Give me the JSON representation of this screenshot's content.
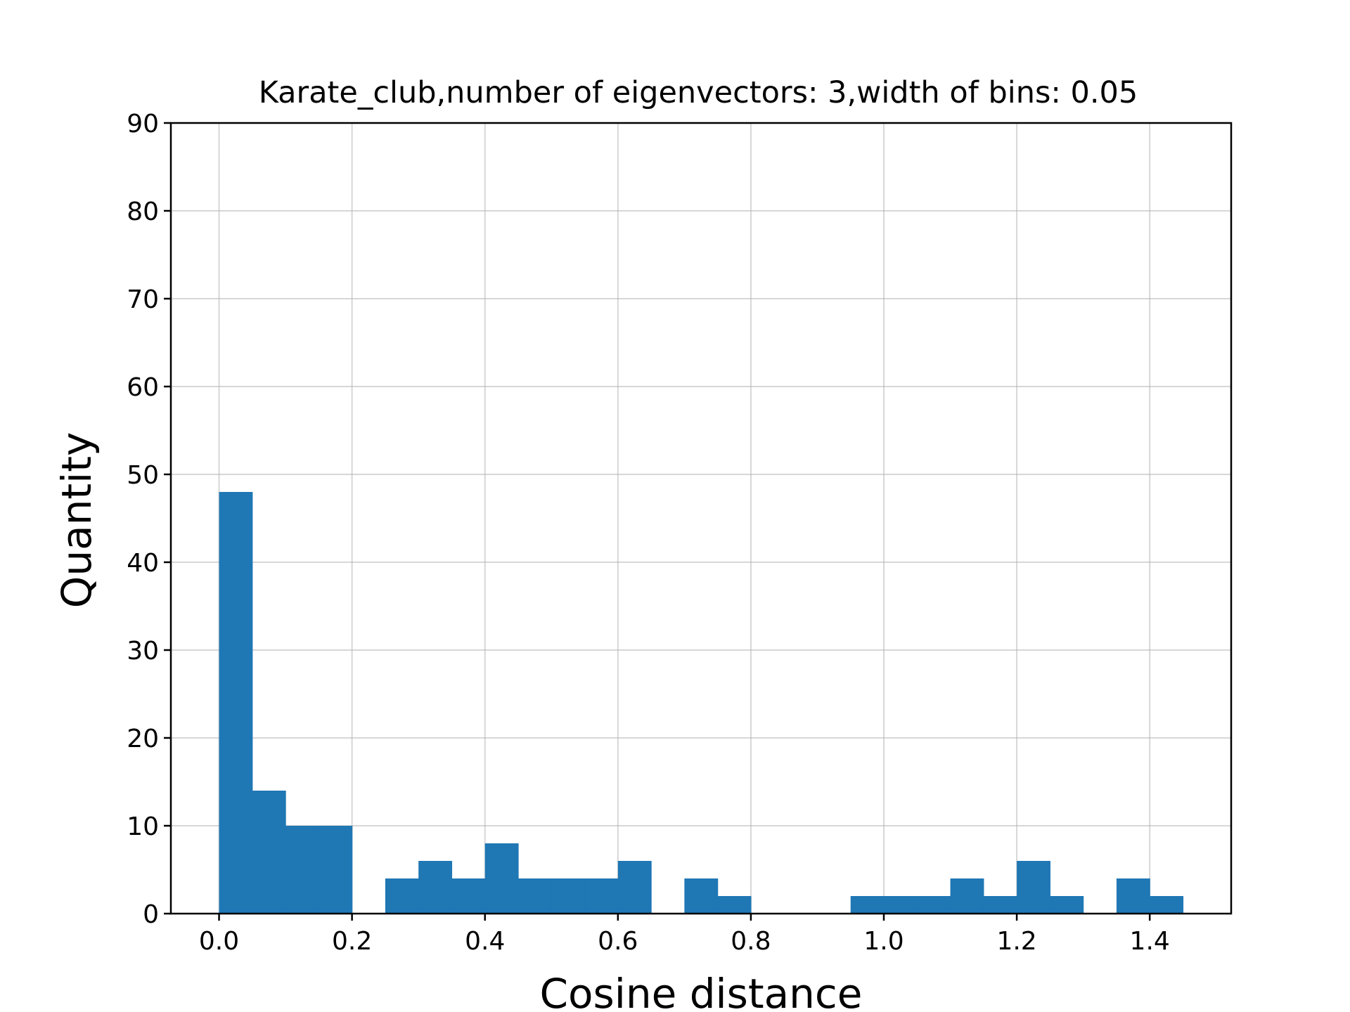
{
  "chart_data": {
    "type": "bar",
    "title": "Karate_club,number of eigenvectors: 3,width of bins: 0.05",
    "xlabel": "Cosine distance",
    "ylabel": "Quantity",
    "xlim": [
      -0.0725,
      1.5225
    ],
    "ylim": [
      0,
      90
    ],
    "bin_width": 0.05,
    "bar_color": "#1f77b4",
    "grid": true,
    "x_ticks": [
      {
        "value": 0.0,
        "label": "0.0"
      },
      {
        "value": 0.2,
        "label": "0.2"
      },
      {
        "value": 0.4,
        "label": "0.4"
      },
      {
        "value": 0.6,
        "label": "0.6"
      },
      {
        "value": 0.8,
        "label": "0.8"
      },
      {
        "value": 1.0,
        "label": "1.0"
      },
      {
        "value": 1.2,
        "label": "1.2"
      },
      {
        "value": 1.4,
        "label": "1.4"
      }
    ],
    "y_ticks": [
      {
        "value": 0,
        "label": "0"
      },
      {
        "value": 10,
        "label": "10"
      },
      {
        "value": 20,
        "label": "20"
      },
      {
        "value": 30,
        "label": "30"
      },
      {
        "value": 40,
        "label": "40"
      },
      {
        "value": 50,
        "label": "50"
      },
      {
        "value": 60,
        "label": "60"
      },
      {
        "value": 70,
        "label": "70"
      },
      {
        "value": 80,
        "label": "80"
      },
      {
        "value": 90,
        "label": "90"
      }
    ],
    "bins": [
      {
        "start": 0.0,
        "count": 48
      },
      {
        "start": 0.05,
        "count": 14
      },
      {
        "start": 0.1,
        "count": 10
      },
      {
        "start": 0.15,
        "count": 10
      },
      {
        "start": 0.2,
        "count": 0
      },
      {
        "start": 0.25,
        "count": 4
      },
      {
        "start": 0.3,
        "count": 6
      },
      {
        "start": 0.35,
        "count": 4
      },
      {
        "start": 0.4,
        "count": 8
      },
      {
        "start": 0.45,
        "count": 4
      },
      {
        "start": 0.5,
        "count": 4
      },
      {
        "start": 0.55,
        "count": 4
      },
      {
        "start": 0.6,
        "count": 6
      },
      {
        "start": 0.65,
        "count": 0
      },
      {
        "start": 0.7,
        "count": 4
      },
      {
        "start": 0.75,
        "count": 2
      },
      {
        "start": 0.8,
        "count": 0
      },
      {
        "start": 0.85,
        "count": 0
      },
      {
        "start": 0.9,
        "count": 0
      },
      {
        "start": 0.95,
        "count": 2
      },
      {
        "start": 1.0,
        "count": 2
      },
      {
        "start": 1.05,
        "count": 2
      },
      {
        "start": 1.1,
        "count": 4
      },
      {
        "start": 1.15,
        "count": 2
      },
      {
        "start": 1.2,
        "count": 6
      },
      {
        "start": 1.25,
        "count": 2
      },
      {
        "start": 1.3,
        "count": 0
      },
      {
        "start": 1.35,
        "count": 4
      },
      {
        "start": 1.4,
        "count": 2
      }
    ]
  }
}
